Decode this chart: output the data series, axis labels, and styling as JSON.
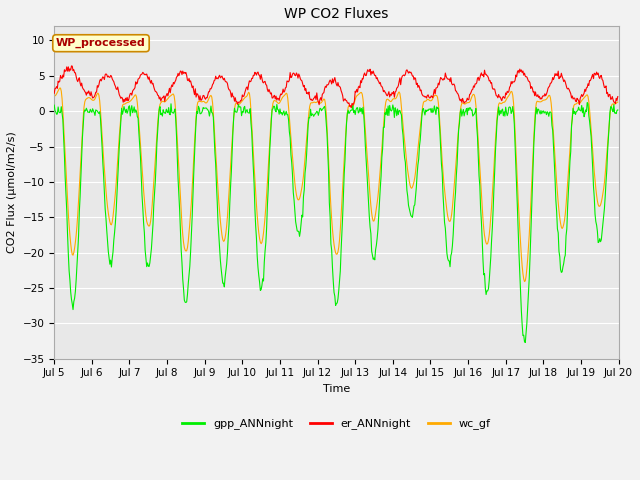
{
  "title": "WP CO2 Fluxes",
  "xlabel": "Time",
  "ylabel": "CO2 Flux (μmol/m2/s)",
  "ylim": [
    -35,
    12
  ],
  "yticks": [
    -35,
    -30,
    -25,
    -20,
    -15,
    -10,
    -5,
    0,
    5,
    10
  ],
  "start_day": 5,
  "end_day": 20,
  "n_days": 15,
  "points_per_day": 48,
  "gpp_color": "#00ee00",
  "er_color": "#ff0000",
  "wc_color": "#ffaa00",
  "annotation_text": "WP_processed",
  "annotation_bg": "#ffffcc",
  "annotation_border": "#cc8800",
  "annotation_text_color": "#aa0000",
  "fig_bg": "#f2f2f2",
  "plot_bg": "#e8e8e8",
  "legend_labels": [
    "gpp_ANNnight",
    "er_ANNnight",
    "wc_gf"
  ],
  "grid_color": "#ffffff",
  "linewidth": 0.8,
  "title_fontsize": 10,
  "label_fontsize": 8,
  "tick_fontsize": 7.5,
  "annot_fontsize": 8
}
